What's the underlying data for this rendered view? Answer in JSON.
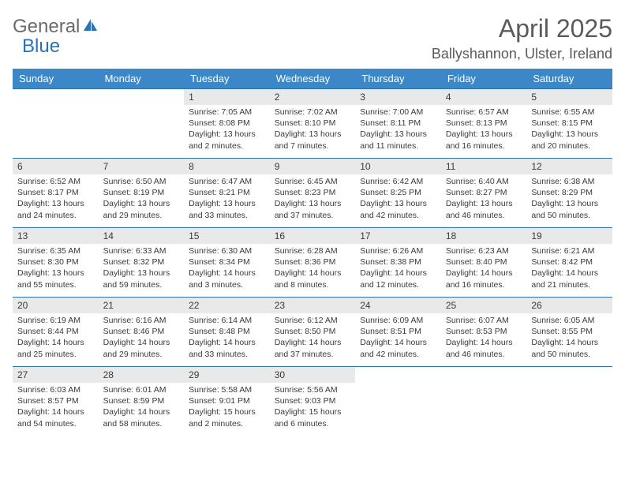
{
  "colors": {
    "header_bg": "#3b87c8",
    "daynum_bg": "#e9e9e9",
    "border": "#2a72b5",
    "text": "#3a3a3a",
    "title": "#5a5a5a",
    "logo_gray": "#6b6b6b",
    "logo_blue": "#2a72b5"
  },
  "logo": {
    "part1": "General",
    "part2": "Blue"
  },
  "title": "April 2025",
  "location": "Ballyshannon, Ulster, Ireland",
  "weekdays": [
    "Sunday",
    "Monday",
    "Tuesday",
    "Wednesday",
    "Thursday",
    "Friday",
    "Saturday"
  ],
  "weeks": [
    [
      {
        "n": "",
        "sr": "",
        "ss": "",
        "dl1": "",
        "dl2": ""
      },
      {
        "n": "",
        "sr": "",
        "ss": "",
        "dl1": "",
        "dl2": ""
      },
      {
        "n": "1",
        "sr": "Sunrise: 7:05 AM",
        "ss": "Sunset: 8:08 PM",
        "dl1": "Daylight: 13 hours",
        "dl2": "and 2 minutes."
      },
      {
        "n": "2",
        "sr": "Sunrise: 7:02 AM",
        "ss": "Sunset: 8:10 PM",
        "dl1": "Daylight: 13 hours",
        "dl2": "and 7 minutes."
      },
      {
        "n": "3",
        "sr": "Sunrise: 7:00 AM",
        "ss": "Sunset: 8:11 PM",
        "dl1": "Daylight: 13 hours",
        "dl2": "and 11 minutes."
      },
      {
        "n": "4",
        "sr": "Sunrise: 6:57 AM",
        "ss": "Sunset: 8:13 PM",
        "dl1": "Daylight: 13 hours",
        "dl2": "and 16 minutes."
      },
      {
        "n": "5",
        "sr": "Sunrise: 6:55 AM",
        "ss": "Sunset: 8:15 PM",
        "dl1": "Daylight: 13 hours",
        "dl2": "and 20 minutes."
      }
    ],
    [
      {
        "n": "6",
        "sr": "Sunrise: 6:52 AM",
        "ss": "Sunset: 8:17 PM",
        "dl1": "Daylight: 13 hours",
        "dl2": "and 24 minutes."
      },
      {
        "n": "7",
        "sr": "Sunrise: 6:50 AM",
        "ss": "Sunset: 8:19 PM",
        "dl1": "Daylight: 13 hours",
        "dl2": "and 29 minutes."
      },
      {
        "n": "8",
        "sr": "Sunrise: 6:47 AM",
        "ss": "Sunset: 8:21 PM",
        "dl1": "Daylight: 13 hours",
        "dl2": "and 33 minutes."
      },
      {
        "n": "9",
        "sr": "Sunrise: 6:45 AM",
        "ss": "Sunset: 8:23 PM",
        "dl1": "Daylight: 13 hours",
        "dl2": "and 37 minutes."
      },
      {
        "n": "10",
        "sr": "Sunrise: 6:42 AM",
        "ss": "Sunset: 8:25 PM",
        "dl1": "Daylight: 13 hours",
        "dl2": "and 42 minutes."
      },
      {
        "n": "11",
        "sr": "Sunrise: 6:40 AM",
        "ss": "Sunset: 8:27 PM",
        "dl1": "Daylight: 13 hours",
        "dl2": "and 46 minutes."
      },
      {
        "n": "12",
        "sr": "Sunrise: 6:38 AM",
        "ss": "Sunset: 8:29 PM",
        "dl1": "Daylight: 13 hours",
        "dl2": "and 50 minutes."
      }
    ],
    [
      {
        "n": "13",
        "sr": "Sunrise: 6:35 AM",
        "ss": "Sunset: 8:30 PM",
        "dl1": "Daylight: 13 hours",
        "dl2": "and 55 minutes."
      },
      {
        "n": "14",
        "sr": "Sunrise: 6:33 AM",
        "ss": "Sunset: 8:32 PM",
        "dl1": "Daylight: 13 hours",
        "dl2": "and 59 minutes."
      },
      {
        "n": "15",
        "sr": "Sunrise: 6:30 AM",
        "ss": "Sunset: 8:34 PM",
        "dl1": "Daylight: 14 hours",
        "dl2": "and 3 minutes."
      },
      {
        "n": "16",
        "sr": "Sunrise: 6:28 AM",
        "ss": "Sunset: 8:36 PM",
        "dl1": "Daylight: 14 hours",
        "dl2": "and 8 minutes."
      },
      {
        "n": "17",
        "sr": "Sunrise: 6:26 AM",
        "ss": "Sunset: 8:38 PM",
        "dl1": "Daylight: 14 hours",
        "dl2": "and 12 minutes."
      },
      {
        "n": "18",
        "sr": "Sunrise: 6:23 AM",
        "ss": "Sunset: 8:40 PM",
        "dl1": "Daylight: 14 hours",
        "dl2": "and 16 minutes."
      },
      {
        "n": "19",
        "sr": "Sunrise: 6:21 AM",
        "ss": "Sunset: 8:42 PM",
        "dl1": "Daylight: 14 hours",
        "dl2": "and 21 minutes."
      }
    ],
    [
      {
        "n": "20",
        "sr": "Sunrise: 6:19 AM",
        "ss": "Sunset: 8:44 PM",
        "dl1": "Daylight: 14 hours",
        "dl2": "and 25 minutes."
      },
      {
        "n": "21",
        "sr": "Sunrise: 6:16 AM",
        "ss": "Sunset: 8:46 PM",
        "dl1": "Daylight: 14 hours",
        "dl2": "and 29 minutes."
      },
      {
        "n": "22",
        "sr": "Sunrise: 6:14 AM",
        "ss": "Sunset: 8:48 PM",
        "dl1": "Daylight: 14 hours",
        "dl2": "and 33 minutes."
      },
      {
        "n": "23",
        "sr": "Sunrise: 6:12 AM",
        "ss": "Sunset: 8:50 PM",
        "dl1": "Daylight: 14 hours",
        "dl2": "and 37 minutes."
      },
      {
        "n": "24",
        "sr": "Sunrise: 6:09 AM",
        "ss": "Sunset: 8:51 PM",
        "dl1": "Daylight: 14 hours",
        "dl2": "and 42 minutes."
      },
      {
        "n": "25",
        "sr": "Sunrise: 6:07 AM",
        "ss": "Sunset: 8:53 PM",
        "dl1": "Daylight: 14 hours",
        "dl2": "and 46 minutes."
      },
      {
        "n": "26",
        "sr": "Sunrise: 6:05 AM",
        "ss": "Sunset: 8:55 PM",
        "dl1": "Daylight: 14 hours",
        "dl2": "and 50 minutes."
      }
    ],
    [
      {
        "n": "27",
        "sr": "Sunrise: 6:03 AM",
        "ss": "Sunset: 8:57 PM",
        "dl1": "Daylight: 14 hours",
        "dl2": "and 54 minutes."
      },
      {
        "n": "28",
        "sr": "Sunrise: 6:01 AM",
        "ss": "Sunset: 8:59 PM",
        "dl1": "Daylight: 14 hours",
        "dl2": "and 58 minutes."
      },
      {
        "n": "29",
        "sr": "Sunrise: 5:58 AM",
        "ss": "Sunset: 9:01 PM",
        "dl1": "Daylight: 15 hours",
        "dl2": "and 2 minutes."
      },
      {
        "n": "30",
        "sr": "Sunrise: 5:56 AM",
        "ss": "Sunset: 9:03 PM",
        "dl1": "Daylight: 15 hours",
        "dl2": "and 6 minutes."
      },
      {
        "n": "",
        "sr": "",
        "ss": "",
        "dl1": "",
        "dl2": ""
      },
      {
        "n": "",
        "sr": "",
        "ss": "",
        "dl1": "",
        "dl2": ""
      },
      {
        "n": "",
        "sr": "",
        "ss": "",
        "dl1": "",
        "dl2": ""
      }
    ]
  ]
}
